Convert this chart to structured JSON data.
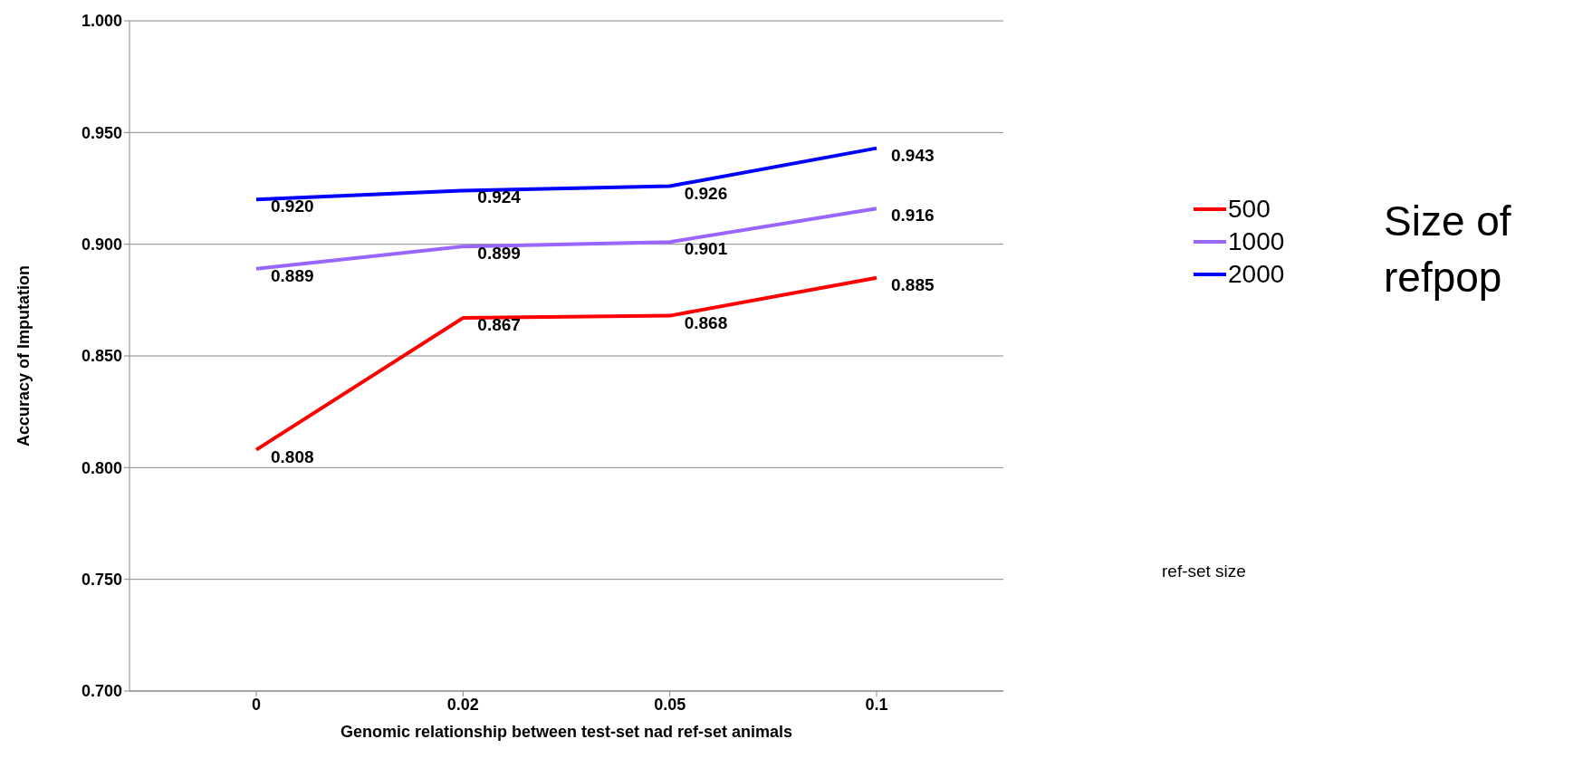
{
  "chart_data": {
    "type": "line",
    "xlabel": "Genomic relationship between test-set nad ref-set animals",
    "ylabel": "Accuracy of Imputation",
    "categories": [
      "0",
      "0.02",
      "0.05",
      "0.1"
    ],
    "series": [
      {
        "name": "500",
        "color": "#ff0000",
        "values": [
          0.808,
          0.867,
          0.868,
          0.885
        ],
        "value_labels": [
          "0.808",
          "0.867",
          "0.868",
          "0.885"
        ]
      },
      {
        "name": "1000",
        "color": "#9966ff",
        "values": [
          0.889,
          0.899,
          0.901,
          0.916
        ],
        "value_labels": [
          "0.889",
          "0.899",
          "0.901",
          "0.916"
        ]
      },
      {
        "name": "2000",
        "color": "#0000ff",
        "values": [
          0.92,
          0.924,
          0.926,
          0.943
        ],
        "value_labels": [
          "0.920",
          "0.924",
          "0.926",
          "0.943"
        ]
      }
    ],
    "ylim": [
      0.7,
      1.0
    ],
    "yticks": [
      {
        "value": 0.7,
        "label": "0.700"
      },
      {
        "value": 0.75,
        "label": "0.750"
      },
      {
        "value": 0.8,
        "label": "0.800"
      },
      {
        "value": 0.85,
        "label": "0.850"
      },
      {
        "value": 0.9,
        "label": "0.900"
      },
      {
        "value": 0.95,
        "label": "0.950"
      },
      {
        "value": 1.0,
        "label": "1.000"
      }
    ],
    "grid": "y",
    "legend": "right",
    "marker": "none",
    "line_style": "solid",
    "annotations": [
      "Size of refpop",
      "ref-set size"
    ]
  }
}
